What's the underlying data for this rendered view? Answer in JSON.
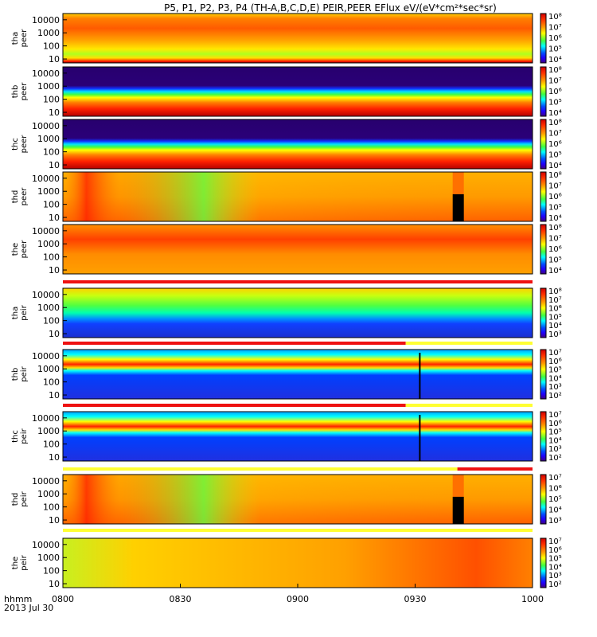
{
  "title": "P5, P1, P2, P3, P4 (TH-A,B,C,D,E) PEIR,PEER EFlux eV/(eV*cm²*sec*sr)",
  "time_axis": {
    "ticks": [
      "0800",
      "0830",
      "0900",
      "0930",
      "1000"
    ],
    "label_line1": "hhmm",
    "label_line2": "2013 Jul 30"
  },
  "chart_data": [
    {
      "type": "heatmap",
      "probe": "tha",
      "label_line1": "tha",
      "label_line2": "peer",
      "yticks": [
        "10000",
        "1000",
        "100",
        "10"
      ],
      "cbar_ticks": [
        "10⁸",
        "10⁷",
        "10⁶",
        "10⁵",
        "10⁴"
      ],
      "x": [
        "08:00",
        "10:00"
      ],
      "ylim": [
        5,
        30000
      ],
      "yscale": "log"
    },
    {
      "type": "heatmap",
      "probe": "thb",
      "label_line1": "thb",
      "label_line2": "peer",
      "yticks": [
        "10000",
        "1000",
        "100",
        "10"
      ],
      "cbar_ticks": [
        "10⁸",
        "10⁷",
        "10⁶",
        "10⁵",
        "10⁴"
      ],
      "x": [
        "08:00",
        "10:00"
      ],
      "ylim": [
        5,
        30000
      ],
      "yscale": "log"
    },
    {
      "type": "heatmap",
      "probe": "thc",
      "label_line1": "thc",
      "label_line2": "peer",
      "yticks": [
        "10000",
        "1000",
        "100",
        "10"
      ],
      "cbar_ticks": [
        "10⁸",
        "10⁷",
        "10⁶",
        "10⁵",
        "10⁴"
      ],
      "x": [
        "08:00",
        "10:00"
      ],
      "ylim": [
        5,
        30000
      ],
      "yscale": "log"
    },
    {
      "type": "heatmap",
      "probe": "thd",
      "label_line1": "thd",
      "label_line2": "peer",
      "yticks": [
        "10000",
        "1000",
        "100",
        "10"
      ],
      "cbar_ticks": [
        "10⁸",
        "10⁷",
        "10⁶",
        "10⁵",
        "10⁴"
      ],
      "x": [
        "08:00",
        "10:00"
      ],
      "ylim": [
        5,
        30000
      ],
      "yscale": "log"
    },
    {
      "type": "heatmap",
      "probe": "the",
      "label_line1": "the",
      "label_line2": "peer",
      "yticks": [
        "10000",
        "1000",
        "100",
        "10"
      ],
      "cbar_ticks": [
        "10⁸",
        "10⁷",
        "10⁶",
        "10⁵",
        "10⁴"
      ],
      "x": [
        "08:00",
        "10:00"
      ],
      "ylim": [
        5,
        30000
      ],
      "yscale": "log"
    },
    {
      "type": "heatmap",
      "probe": "tha",
      "label_line1": "tha",
      "label_line2": "peir",
      "yticks": [
        "10000",
        "1000",
        "100",
        "10"
      ],
      "cbar_ticks": [
        "10⁸",
        "10⁷",
        "10⁶",
        "10⁵",
        "10⁴",
        "10³"
      ],
      "x": [
        "08:00",
        "10:00"
      ],
      "ylim": [
        5,
        30000
      ],
      "yscale": "log"
    },
    {
      "type": "heatmap",
      "probe": "thb",
      "label_line1": "thb",
      "label_line2": "peir",
      "yticks": [
        "10000",
        "1000",
        "100",
        "10"
      ],
      "cbar_ticks": [
        "10⁷",
        "10⁶",
        "10⁵",
        "10⁴",
        "10³",
        "10²"
      ],
      "x": [
        "08:00",
        "10:00"
      ],
      "ylim": [
        5,
        30000
      ],
      "yscale": "log"
    },
    {
      "type": "heatmap",
      "probe": "thc",
      "label_line1": "thc",
      "label_line2": "peir",
      "yticks": [
        "10000",
        "1000",
        "100",
        "10"
      ],
      "cbar_ticks": [
        "10⁷",
        "10⁶",
        "10⁵",
        "10⁴",
        "10³",
        "10²"
      ],
      "x": [
        "08:00",
        "10:00"
      ],
      "ylim": [
        5,
        30000
      ],
      "yscale": "log"
    },
    {
      "type": "heatmap",
      "probe": "thd",
      "label_line1": "thd",
      "label_line2": "peir",
      "yticks": [
        "10000",
        "1000",
        "100",
        "10"
      ],
      "cbar_ticks": [
        "10⁷",
        "10⁶",
        "10⁵",
        "10⁴",
        "10³"
      ],
      "x": [
        "08:00",
        "10:00"
      ],
      "ylim": [
        5,
        30000
      ],
      "yscale": "log"
    },
    {
      "type": "heatmap",
      "probe": "the",
      "label_line1": "the",
      "label_line2": "peir",
      "yticks": [
        "10000",
        "1000",
        "100",
        "10"
      ],
      "cbar_ticks": [
        "10⁷",
        "10⁶",
        "10⁵",
        "10⁴",
        "10³",
        "10²"
      ],
      "x": [
        "08:00",
        "10:00"
      ],
      "ylim": [
        5,
        30000
      ],
      "yscale": "log"
    }
  ],
  "colors": {
    "colorbar": [
      "#ff0000",
      "#ff8c00",
      "#ffff00",
      "#00ff00",
      "#00ffff",
      "#0060ff",
      "#0000ff",
      "#3c0096"
    ],
    "mode_bar_red": "#ee1111",
    "mode_bar_yellow": "#ffff33"
  }
}
